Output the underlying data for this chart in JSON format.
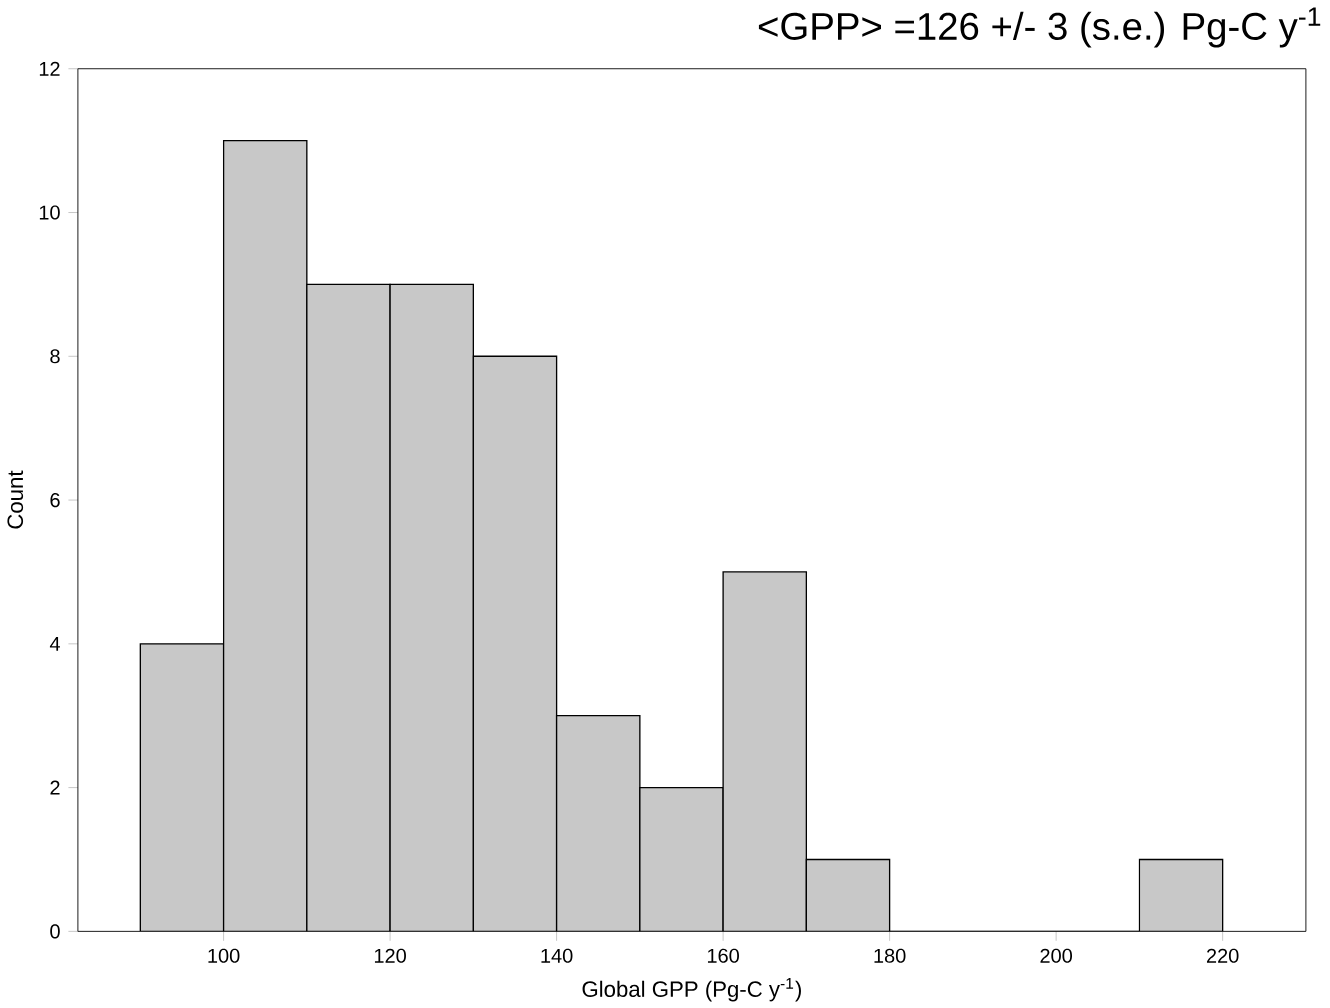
{
  "chart_data": {
    "type": "histogram",
    "title": "<GPP> =126 +/- 3 (s.e.) Pg-C y$^{-1}$",
    "xlabel": "Global GPP (Pg-C y$^{-1}$)",
    "ylabel": "Count",
    "bins": [
      90,
      100,
      110,
      120,
      130,
      140,
      150,
      160,
      170,
      180,
      190,
      200,
      210,
      220
    ],
    "values": [
      4,
      11,
      9,
      9,
      8,
      3,
      2,
      5,
      1,
      0,
      0,
      0,
      1
    ],
    "color": "#c8c8c8",
    "xlim": [
      82.5,
      230
    ],
    "xticks": [
      100,
      120,
      140,
      160,
      180,
      200,
      220
    ],
    "ylim": [
      0,
      12
    ],
    "yticks": [
      0,
      2,
      4,
      6,
      8,
      10,
      12
    ],
    "grid": false
  }
}
